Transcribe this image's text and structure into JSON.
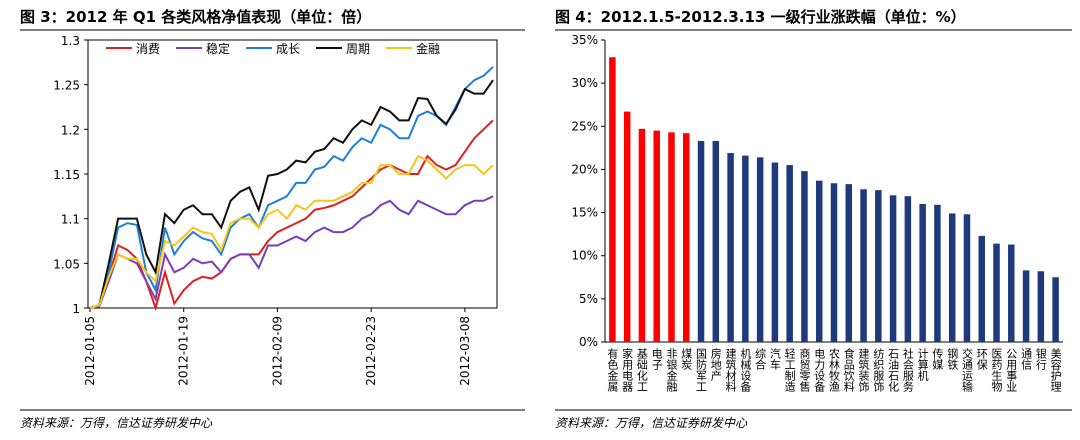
{
  "chart_data": [
    {
      "type": "line",
      "title": "图 3：2012 年 Q1 各类风格净值表现（单位：倍）",
      "source": "资料来源：万得，信达证券研发中心",
      "categories": [
        "2012-01-05",
        "2012-01-06",
        "2012-01-09",
        "2012-01-10",
        "2012-01-11",
        "2012-01-12",
        "2012-01-13",
        "2012-01-16",
        "2012-01-17",
        "2012-01-18",
        "2012-01-19",
        "2012-01-20",
        "2012-01-30",
        "2012-01-31",
        "2012-02-01",
        "2012-02-02",
        "2012-02-03",
        "2012-02-06",
        "2012-02-07",
        "2012-02-08",
        "2012-02-09",
        "2012-02-10",
        "2012-02-13",
        "2012-02-14",
        "2012-02-15",
        "2012-02-16",
        "2012-02-17",
        "2012-02-20",
        "2012-02-21",
        "2012-02-22",
        "2012-02-23",
        "2012-02-24",
        "2012-02-27",
        "2012-02-28",
        "2012-02-29",
        "2012-03-01",
        "2012-03-02",
        "2012-03-05",
        "2012-03-06",
        "2012-03-07",
        "2012-03-08",
        "2012-03-09",
        "2012-03-12",
        "2012-03-13"
      ],
      "xticks": [
        "2012-01-05",
        "2012-01-19",
        "2012-02-09",
        "2012-02-23",
        "2012-03-08"
      ],
      "ylim": [
        1,
        1.3
      ],
      "yticks": [
        1,
        1.05,
        1.1,
        1.15,
        1.2,
        1.25,
        1.3
      ],
      "legend": "top",
      "series": [
        {
          "name": "消费",
          "color": "#e02020",
          "values": [
            1.0,
            1.003,
            1.035,
            1.07,
            1.065,
            1.055,
            1.03,
            1.0,
            1.04,
            1.005,
            1.02,
            1.03,
            1.035,
            1.033,
            1.04,
            1.055,
            1.06,
            1.06,
            1.06,
            1.075,
            1.085,
            1.09,
            1.095,
            1.1,
            1.11,
            1.112,
            1.115,
            1.12,
            1.125,
            1.135,
            1.145,
            1.155,
            1.16,
            1.155,
            1.15,
            1.15,
            1.17,
            1.16,
            1.155,
            1.16,
            1.175,
            1.19,
            1.2,
            1.21
          ]
        },
        {
          "name": "稳定",
          "color": "#7a3fb5",
          "values": [
            1.0,
            1.002,
            1.03,
            1.06,
            1.055,
            1.05,
            1.03,
            1.01,
            1.06,
            1.04,
            1.045,
            1.055,
            1.05,
            1.052,
            1.04,
            1.055,
            1.06,
            1.06,
            1.045,
            1.07,
            1.07,
            1.075,
            1.08,
            1.075,
            1.085,
            1.09,
            1.085,
            1.085,
            1.09,
            1.1,
            1.105,
            1.115,
            1.12,
            1.11,
            1.105,
            1.12,
            1.115,
            1.11,
            1.105,
            1.105,
            1.115,
            1.12,
            1.12,
            1.125
          ]
        },
        {
          "name": "成长",
          "color": "#1f7fd8",
          "values": [
            1.0,
            1.003,
            1.04,
            1.09,
            1.095,
            1.093,
            1.04,
            1.02,
            1.09,
            1.06,
            1.075,
            1.085,
            1.078,
            1.075,
            1.06,
            1.09,
            1.1,
            1.105,
            1.09,
            1.115,
            1.12,
            1.125,
            1.14,
            1.14,
            1.155,
            1.158,
            1.17,
            1.165,
            1.18,
            1.19,
            1.185,
            1.205,
            1.2,
            1.19,
            1.19,
            1.215,
            1.22,
            1.215,
            1.205,
            1.225,
            1.245,
            1.255,
            1.26,
            1.27
          ]
        },
        {
          "name": "周期",
          "color": "#111111",
          "values": [
            1.0,
            1.003,
            1.05,
            1.1,
            1.1,
            1.1,
            1.06,
            1.04,
            1.105,
            1.095,
            1.11,
            1.115,
            1.105,
            1.105,
            1.09,
            1.12,
            1.13,
            1.135,
            1.11,
            1.148,
            1.15,
            1.155,
            1.165,
            1.163,
            1.175,
            1.178,
            1.19,
            1.185,
            1.2,
            1.21,
            1.205,
            1.225,
            1.22,
            1.21,
            1.21,
            1.235,
            1.234,
            1.215,
            1.206,
            1.222,
            1.245,
            1.24,
            1.24,
            1.255
          ]
        },
        {
          "name": "金融",
          "color": "#f5c518",
          "values": [
            1.0,
            1.003,
            1.035,
            1.06,
            1.055,
            1.055,
            1.04,
            1.03,
            1.075,
            1.07,
            1.08,
            1.09,
            1.085,
            1.083,
            1.065,
            1.095,
            1.1,
            1.1,
            1.09,
            1.105,
            1.11,
            1.1,
            1.115,
            1.11,
            1.12,
            1.12,
            1.12,
            1.125,
            1.13,
            1.14,
            1.14,
            1.16,
            1.16,
            1.15,
            1.15,
            1.17,
            1.165,
            1.155,
            1.145,
            1.155,
            1.16,
            1.16,
            1.15,
            1.16
          ]
        }
      ]
    },
    {
      "type": "bar",
      "title": "图 4：2012.1.5-2012.3.13 一级行业涨跌幅（单位：%）",
      "source": "资料来源：万得，信达证券研发中心",
      "categories": [
        "有色金属",
        "家用电器",
        "基础化工",
        "电子",
        "非银金融",
        "煤炭",
        "国防军工",
        "房地产",
        "建筑材料",
        "机械设备",
        "综合",
        "汽车",
        "轻工制造",
        "商贸零售",
        "电力设备",
        "农林牧渔",
        "食品饮料",
        "建筑装饰",
        "纺织服饰",
        "石油石化",
        "社会服务",
        "计算机",
        "传媒",
        "钢铁",
        "交通运输",
        "环保",
        "医药生物",
        "公用事业",
        "通信",
        "银行",
        "美容护理"
      ],
      "values": [
        33.0,
        26.7,
        24.7,
        24.5,
        24.3,
        24.2,
        23.3,
        23.3,
        21.9,
        21.6,
        21.4,
        20.8,
        20.5,
        19.8,
        18.7,
        18.4,
        18.3,
        17.7,
        17.6,
        17.0,
        16.9,
        16.0,
        15.9,
        14.9,
        14.8,
        12.3,
        11.4,
        11.3,
        8.3,
        8.2,
        7.5
      ],
      "colors": [
        "#ff0000",
        "#ff0000",
        "#ff0000",
        "#ff0000",
        "#ff0000",
        "#ff0000",
        "#1f3a7a",
        "#1f3a7a",
        "#1f3a7a",
        "#1f3a7a",
        "#1f3a7a",
        "#1f3a7a",
        "#1f3a7a",
        "#1f3a7a",
        "#1f3a7a",
        "#1f3a7a",
        "#1f3a7a",
        "#1f3a7a",
        "#1f3a7a",
        "#1f3a7a",
        "#1f3a7a",
        "#1f3a7a",
        "#1f3a7a",
        "#1f3a7a",
        "#1f3a7a",
        "#1f3a7a",
        "#1f3a7a",
        "#1f3a7a",
        "#1f3a7a",
        "#1f3a7a",
        "#1f3a7a"
      ],
      "ylim": [
        0,
        35
      ],
      "yticks": [
        {
          "value": 0,
          "label": "0%"
        },
        {
          "value": 5,
          "label": "5%"
        },
        {
          "value": 10,
          "label": "10%"
        },
        {
          "value": 15,
          "label": "15%"
        },
        {
          "value": 20,
          "label": "20%"
        },
        {
          "value": 25,
          "label": "25%"
        },
        {
          "value": 30,
          "label": "30%"
        },
        {
          "value": 35,
          "label": "35%"
        }
      ]
    }
  ]
}
